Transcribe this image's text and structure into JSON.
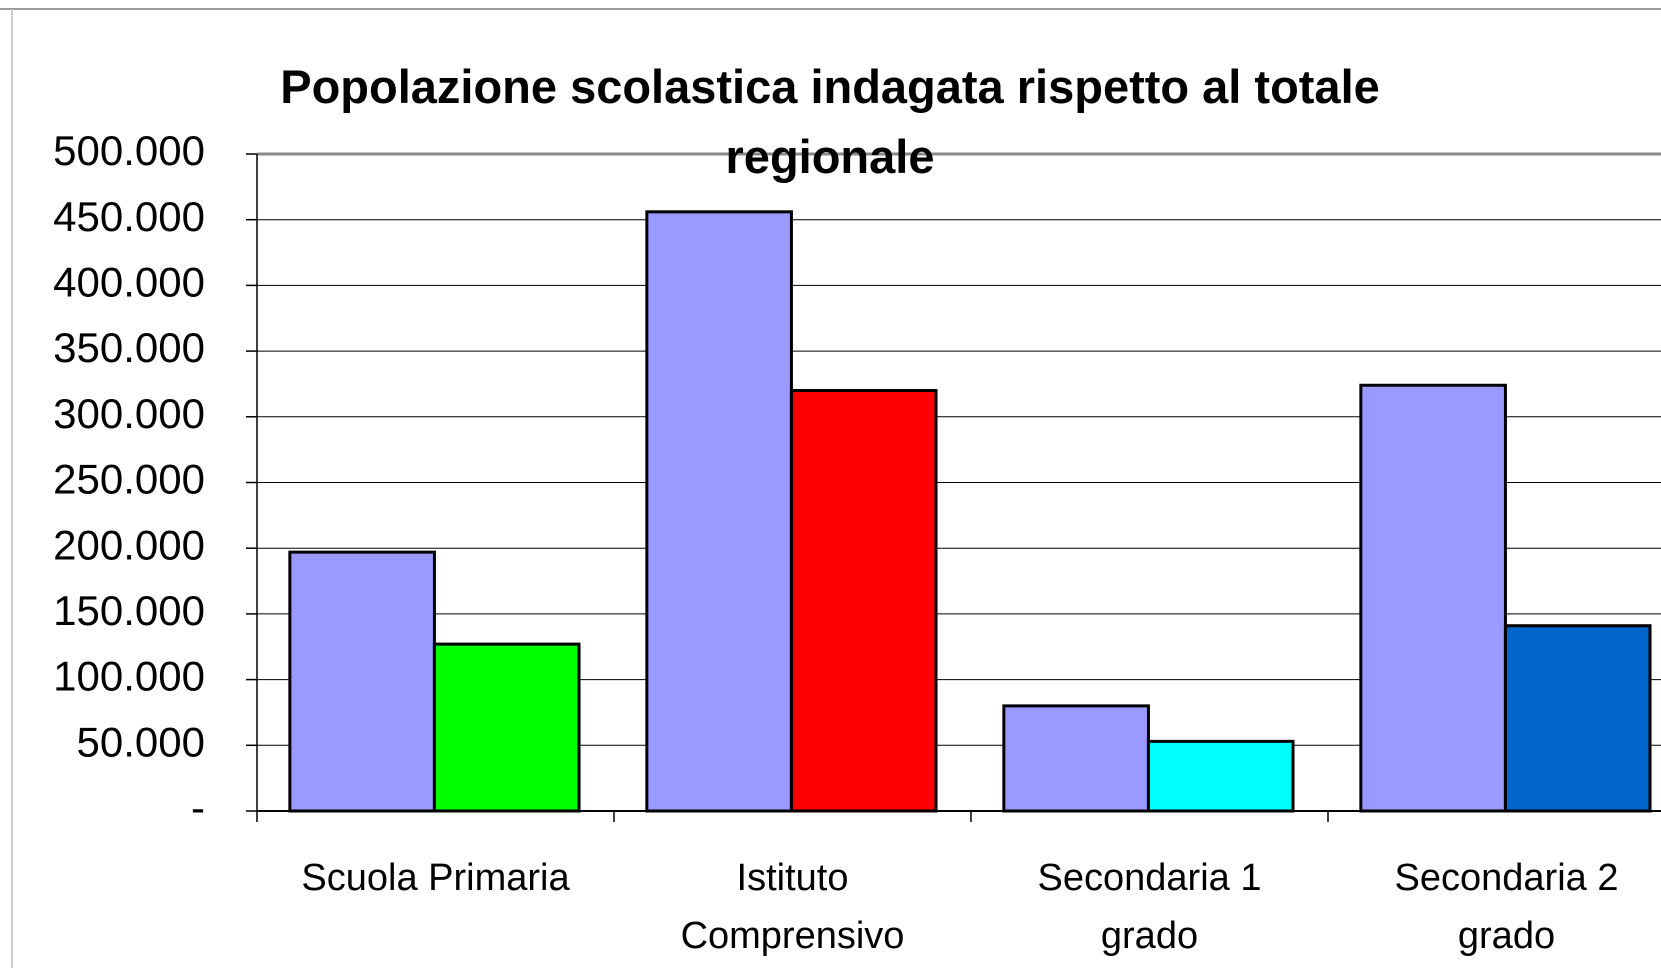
{
  "chart_data": {
    "type": "bar",
    "title": "Popolazione scolastica indagata rispetto al totale regionale",
    "categories": [
      "Scuola Primaria",
      "Istituto Comprensivo",
      "Secondaria 1 grado",
      "Secondaria 2 grado"
    ],
    "series": [
      {
        "color": "#9999ff",
        "values": [
          197000,
          456000,
          80000,
          324000
        ]
      },
      {
        "colors": [
          "#00ff00",
          "#ff0000",
          "#00ffff",
          "#0066cc"
        ],
        "values": [
          127000,
          320000,
          53000,
          141000
        ]
      }
    ],
    "ylim": [
      0,
      500000
    ],
    "yticks": [
      {
        "value": 0,
        "label": "-"
      },
      {
        "value": 50000,
        "label": "50.000"
      },
      {
        "value": 100000,
        "label": "100.000"
      },
      {
        "value": 150000,
        "label": "150.000"
      },
      {
        "value": 200000,
        "label": "200.000"
      },
      {
        "value": 250000,
        "label": "250.000"
      },
      {
        "value": 300000,
        "label": "300.000"
      },
      {
        "value": 350000,
        "label": "350.000"
      },
      {
        "value": 400000,
        "label": "400.000"
      },
      {
        "value": 450000,
        "label": "450.000"
      },
      {
        "value": 500000,
        "label": "500.000"
      }
    ],
    "grid": true
  }
}
